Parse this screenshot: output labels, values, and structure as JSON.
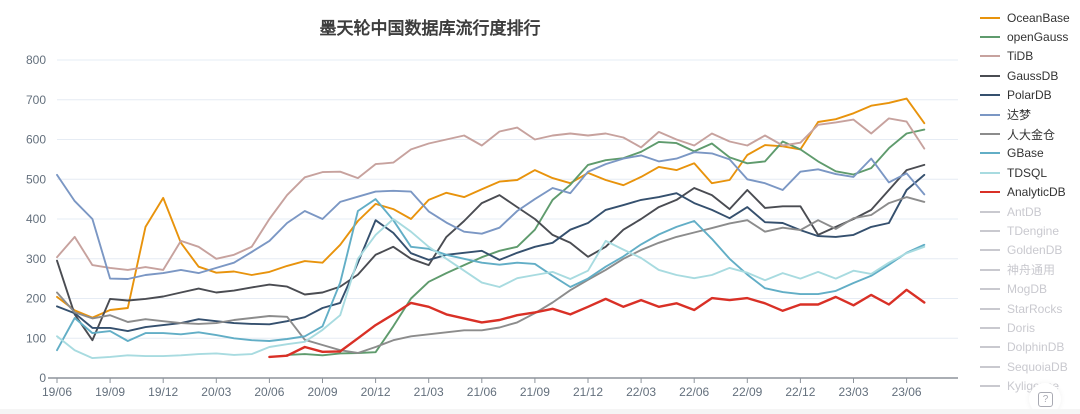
{
  "title": "墨天轮中国数据库流行度排行",
  "help_icon": "?",
  "axis": {
    "y_ticks": [
      0,
      100,
      200,
      300,
      400,
      500,
      600,
      700,
      800
    ],
    "x_tick_labels": [
      "19/06",
      "19/09",
      "19/12",
      "20/03",
      "20/06",
      "20/09",
      "20/12",
      "21/03",
      "21/06",
      "21/09",
      "21/12",
      "22/03",
      "22/06",
      "22/09",
      "22/12",
      "23/03",
      "23/06"
    ]
  },
  "legend": {
    "inactive_color": "#c9c9cf",
    "inactive_items": [
      "AntDB",
      "TDengine",
      "GoldenDB",
      "神舟通用",
      "MogDB",
      "StarRocks",
      "Doris",
      "DolphinDB",
      "SequoiaDB",
      "Kyligence"
    ]
  },
  "chart_data": {
    "type": "line",
    "title": "墨天轮中国数据库流行度排行",
    "xlabel": "",
    "ylabel": "",
    "ylim": [
      0,
      800
    ],
    "grid": true,
    "legend_position": "right",
    "x": [
      "19/06",
      "19/07",
      "19/08",
      "19/09",
      "19/10",
      "19/11",
      "19/12",
      "20/01",
      "20/02",
      "20/03",
      "20/04",
      "20/05",
      "20/06",
      "20/07",
      "20/08",
      "20/09",
      "20/10",
      "20/11",
      "20/12",
      "21/01",
      "21/02",
      "21/03",
      "21/04",
      "21/05",
      "21/06",
      "21/07",
      "21/08",
      "21/09",
      "21/10",
      "21/11",
      "21/12",
      "22/01",
      "22/02",
      "22/03",
      "22/04",
      "22/05",
      "22/06",
      "22/07",
      "22/08",
      "22/09",
      "22/10",
      "22/11",
      "22/12",
      "23/01",
      "23/02",
      "23/03",
      "23/04",
      "23/05",
      "23/06",
      "23/07"
    ],
    "series": [
      {
        "name": "OceanBase",
        "color": "#e8930c",
        "values": [
          204,
          170,
          152,
          171,
          176,
          380,
          453,
          340,
          280,
          265,
          268,
          259,
          267,
          282,
          294,
          290,
          335,
          395,
          438,
          425,
          400,
          448,
          466,
          455,
          475,
          494,
          498,
          523,
          503,
          490,
          516,
          498,
          485,
          506,
          531,
          523,
          540,
          490,
          498,
          561,
          586,
          583,
          575,
          644,
          651,
          666,
          685,
          692,
          703,
          641
        ]
      },
      {
        "name": "openGauss",
        "color": "#5f9b6d",
        "values": [
          null,
          null,
          null,
          null,
          null,
          null,
          null,
          null,
          null,
          null,
          null,
          null,
          null,
          58,
          60,
          57,
          62,
          63,
          65,
          130,
          200,
          242,
          264,
          284,
          304,
          320,
          330,
          373,
          448,
          486,
          536,
          548,
          553,
          569,
          594,
          591,
          570,
          590,
          555,
          540,
          545,
          595,
          575,
          545,
          520,
          512,
          528,
          578,
          615,
          625
        ]
      },
      {
        "name": "TiDB",
        "color": "#c7a29e",
        "values": [
          304,
          355,
          284,
          277,
          272,
          279,
          272,
          345,
          330,
          300,
          310,
          330,
          400,
          460,
          505,
          518,
          519,
          503,
          538,
          542,
          575,
          590,
          600,
          610,
          585,
          620,
          630,
          600,
          610,
          615,
          610,
          615,
          605,
          580,
          619,
          600,
          585,
          615,
          595,
          585,
          610,
          585,
          592,
          637,
          643,
          650,
          615,
          653,
          645,
          577
        ]
      },
      {
        "name": "GaussDB",
        "color": "#4a4c52",
        "values": [
          295,
          160,
          95,
          199,
          195,
          199,
          205,
          215,
          225,
          215,
          220,
          228,
          235,
          230,
          210,
          215,
          230,
          260,
          310,
          330,
          300,
          284,
          355,
          395,
          440,
          460,
          430,
          400,
          360,
          340,
          305,
          330,
          373,
          400,
          430,
          448,
          478,
          460,
          425,
          473,
          428,
          432,
          432,
          360,
          380,
          400,
          423,
          473,
          523,
          536
        ]
      },
      {
        "name": "PolarDB",
        "color": "#35506e",
        "values": [
          180,
          163,
          126,
          126,
          118,
          128,
          133,
          138,
          148,
          143,
          138,
          136,
          135,
          143,
          153,
          176,
          189,
          290,
          397,
          365,
          314,
          297,
          310,
          315,
          320,
          297,
          315,
          330,
          340,
          373,
          390,
          423,
          435,
          448,
          455,
          465,
          440,
          423,
          402,
          430,
          392,
          390,
          372,
          357,
          355,
          360,
          380,
          390,
          473,
          511
        ]
      },
      {
        "name": "达梦",
        "color": "#7b97c4",
        "values": [
          511,
          445,
          400,
          250,
          249,
          259,
          264,
          272,
          264,
          277,
          290,
          317,
          345,
          390,
          420,
          400,
          443,
          456,
          469,
          471,
          469,
          419,
          391,
          368,
          363,
          378,
          420,
          450,
          478,
          465,
          519,
          538,
          552,
          560,
          545,
          552,
          568,
          565,
          550,
          500,
          490,
          473,
          519,
          525,
          513,
          506,
          552,
          492,
          515,
          462
        ]
      },
      {
        "name": "人大金仓",
        "color": "#8c8c8c",
        "values": [
          215,
          165,
          150,
          158,
          141,
          148,
          143,
          138,
          136,
          138,
          146,
          151,
          156,
          154,
          96,
          83,
          70,
          63,
          78,
          95,
          105,
          110,
          115,
          120,
          120,
          127,
          140,
          163,
          190,
          221,
          247,
          272,
          300,
          322,
          340,
          355,
          366,
          377,
          389,
          397,
          368,
          378,
          372,
          397,
          375,
          402,
          410,
          440,
          455,
          443
        ]
      },
      {
        "name": "GBase",
        "color": "#62aec6",
        "values": [
          70,
          151,
          113,
          118,
          93,
          113,
          113,
          110,
          115,
          108,
          100,
          95,
          93,
          98,
          105,
          130,
          240,
          420,
          450,
          397,
          330,
          325,
          310,
          300,
          290,
          285,
          290,
          287,
          257,
          229,
          250,
          280,
          306,
          336,
          361,
          380,
          395,
          350,
          300,
          260,
          226,
          216,
          211,
          211,
          219,
          239,
          257,
          285,
          315,
          335
        ]
      },
      {
        "name": "TDSQL",
        "color": "#a8dbe0",
        "values": [
          105,
          70,
          50,
          53,
          57,
          55,
          55,
          57,
          60,
          62,
          58,
          60,
          78,
          85,
          91,
          121,
          158,
          300,
          360,
          400,
          368,
          330,
          300,
          270,
          240,
          229,
          251,
          259,
          267,
          249,
          270,
          345,
          323,
          302,
          272,
          259,
          251,
          259,
          277,
          265,
          246,
          264,
          250,
          267,
          250,
          270,
          262,
          290,
          314,
          330
        ]
      },
      {
        "name": "AnalyticDB",
        "color": "#d93026",
        "values": [
          null,
          null,
          null,
          null,
          null,
          null,
          null,
          null,
          null,
          null,
          null,
          null,
          53,
          56,
          78,
          66,
          67,
          100,
          133,
          160,
          189,
          179,
          160,
          150,
          140,
          146,
          158,
          165,
          174,
          160,
          179,
          199,
          179,
          196,
          179,
          188,
          171,
          201,
          196,
          201,
          188,
          169,
          185,
          185,
          204,
          183,
          209,
          185,
          222,
          190
        ]
      }
    ]
  }
}
